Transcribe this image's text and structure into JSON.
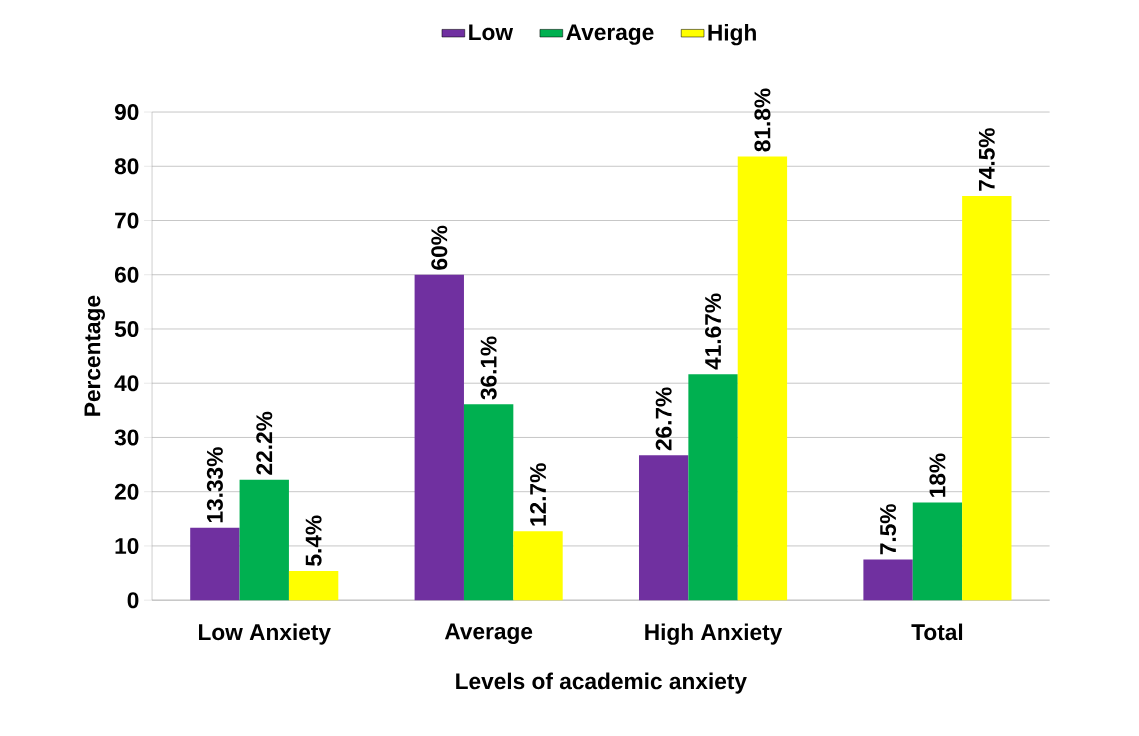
{
  "chart_data": {
    "type": "bar",
    "xlabel": "Levels of academic anxiety",
    "ylabel": "Percentage",
    "categories": [
      "Low Anxiety",
      "Average",
      "High Anxiety",
      "Total"
    ],
    "series": [
      {
        "name": "Low",
        "color": "#7030a0",
        "values": [
          13.33,
          60,
          26.7,
          7.5
        ],
        "value_labels": [
          "13.33%",
          "60%",
          "26.7%",
          "7.5%"
        ]
      },
      {
        "name": "Average",
        "color": "#00b050",
        "values": [
          22.2,
          36.1,
          41.67,
          18
        ],
        "value_labels": [
          "22.2%",
          "36.1%",
          "41.67%",
          "18%"
        ]
      },
      {
        "name": "High",
        "color": "#ffff00",
        "values": [
          5.4,
          12.7,
          81.8,
          74.5
        ],
        "value_labels": [
          "5.4%",
          "12.7%",
          "81.8%",
          "74.5%"
        ]
      }
    ],
    "ylim": [
      0,
      90
    ],
    "yticks": [
      0,
      10,
      20,
      30,
      40,
      50,
      60,
      70,
      80,
      90
    ],
    "grid": "y",
    "legend": "top"
  }
}
